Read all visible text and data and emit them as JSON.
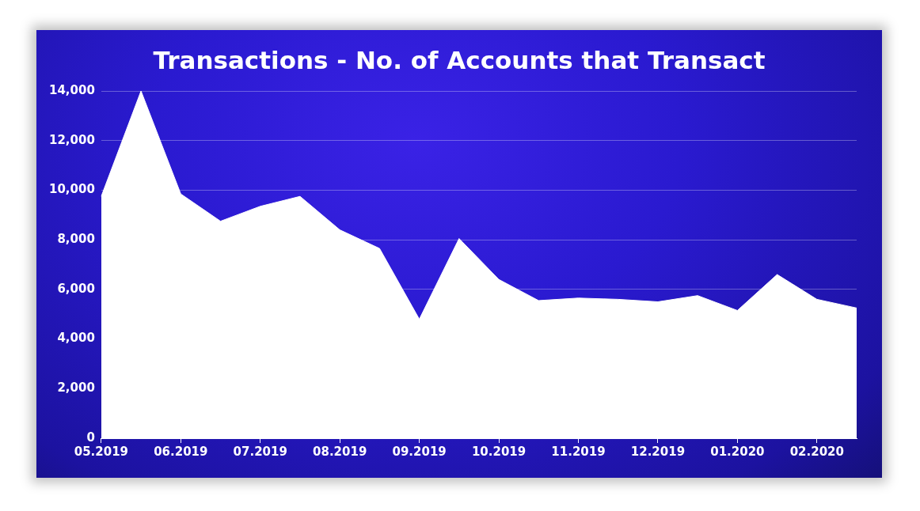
{
  "chart_data": {
    "type": "area",
    "title": "Transactions - No. of Accounts that Transact",
    "categories": [
      "05.2019",
      null,
      "06.2019",
      null,
      "07.2019",
      null,
      "08.2019",
      null,
      "09.2019",
      null,
      "10.2019",
      null,
      "11.2019",
      null,
      "12.2019",
      null,
      "01.2020",
      null,
      "02.2020",
      null
    ],
    "series": [
      {
        "color": "#ffffff",
        "values": [
          9750,
          14000,
          9850,
          8750,
          9350,
          9750,
          8400,
          7650,
          4800,
          8050,
          6400,
          5550,
          5650,
          5600,
          5500,
          5750,
          5150,
          6600,
          5600,
          5250
        ]
      }
    ],
    "ylim": [
      0,
      14000
    ],
    "yticks": [
      {
        "value": 0,
        "label": "0"
      },
      {
        "value": 2000,
        "label": "2,000"
      },
      {
        "value": 4000,
        "label": "4,000"
      },
      {
        "value": 6000,
        "label": "6,000"
      },
      {
        "value": 8000,
        "label": "8,000"
      },
      {
        "value": 10000,
        "label": "10,000"
      },
      {
        "value": 12000,
        "label": "12,000"
      },
      {
        "value": 14000,
        "label": "14,000"
      }
    ],
    "grid": "y",
    "legend": false,
    "marker": "none"
  }
}
